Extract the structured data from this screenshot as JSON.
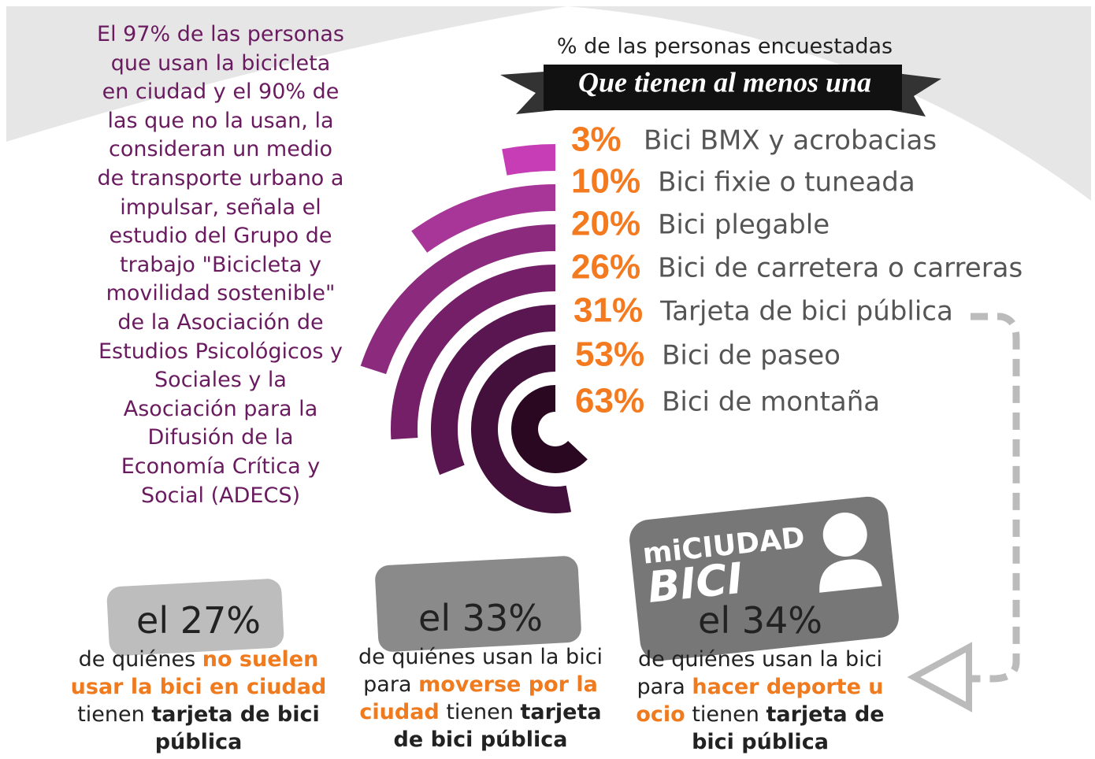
{
  "intro": [
    "El 97% de las personas",
    "que usan la bicicleta",
    "en ciudad y el 90% de",
    "las que no la usan, la",
    "consideran un medio",
    "de transporte urbano a",
    "impulsar, señala el",
    "estudio del Grupo de",
    "trabajo \"Bicicleta y",
    "movilidad sostenible\"",
    "de la Asociación de",
    "Estudios Psicológicos y",
    "Sociales y la",
    "Asociación para la",
    "Difusión de la",
    "Economía Crítica y",
    "Social (ADECS)"
  ],
  "chart_data": {
    "type": "radial_bar",
    "subtitle": "% de las personas encuestadas",
    "title": "Que tienen al menos una",
    "categories": [
      "Bici BMX y acrobacias",
      "Bici fixie o tuneada",
      "Bici plegable",
      "Bici de carretera o carreras",
      "Tarjeta de bici pública",
      "Bici de paseo",
      "Bici de montaña"
    ],
    "values": [
      3,
      10,
      20,
      26,
      31,
      53,
      63
    ],
    "value_labels": [
      "3%",
      "10%",
      "20%",
      "26%",
      "31%",
      "53%",
      "63%"
    ],
    "ylim": [
      0,
      100
    ]
  },
  "card": {
    "line1": "miCIUDAD",
    "line2": "BICI"
  },
  "stats": [
    {
      "headline": "el 27%",
      "text": [
        "de quiénes ",
        "no suelen usar la bici en ciudad",
        " tienen ",
        "tarjeta de bici pública"
      ]
    },
    {
      "headline": "el 33%",
      "text": [
        "de quiénes usan la bici para ",
        "moverse por la ciudad",
        " tienen ",
        "tarjeta de bici pública"
      ]
    },
    {
      "headline": "el 34%",
      "text": [
        "de quiénes usan la bici para ",
        "hacer deporte u ocio",
        " tienen ",
        "tarjeta de bici pública"
      ]
    }
  ]
}
